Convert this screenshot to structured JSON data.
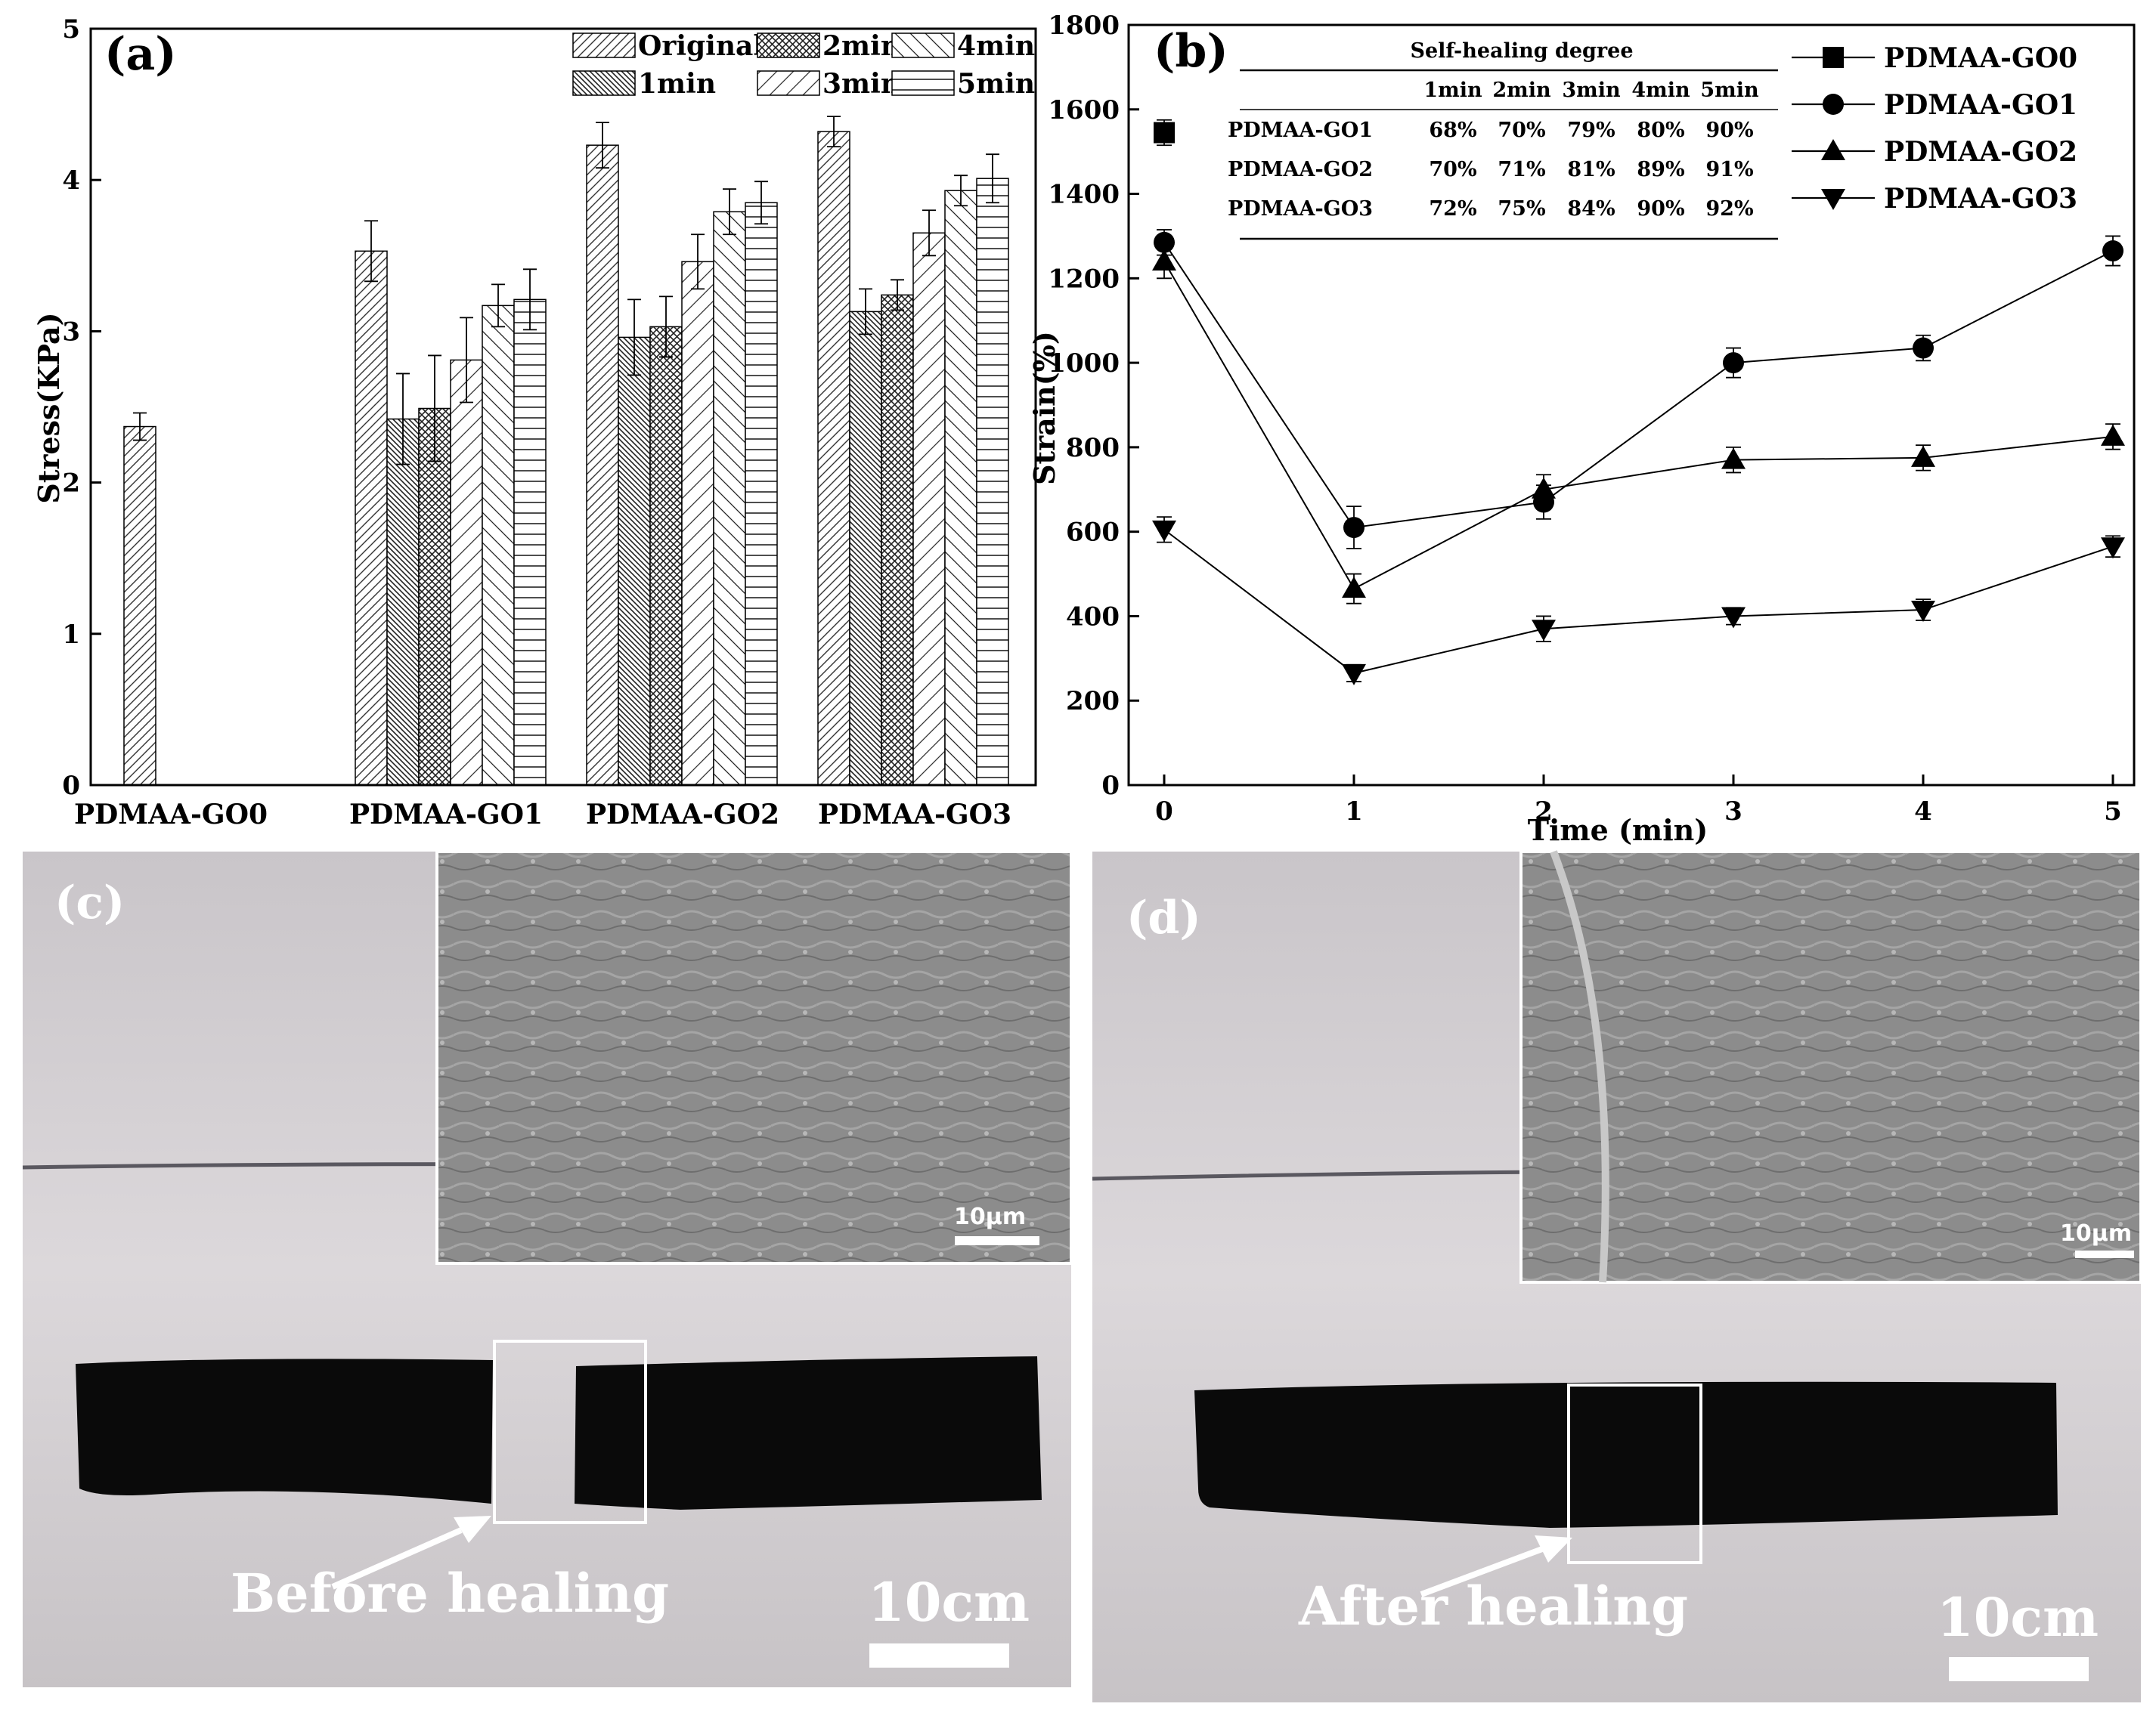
{
  "chart_data": [
    {
      "panel": "(a)",
      "type": "bar",
      "ylabel": "Stress(KPa)",
      "ylim": [
        0,
        5
      ],
      "yticks": [
        "0",
        "1",
        "2",
        "3",
        "4",
        "5"
      ],
      "categories": [
        "PDMAA-GO0",
        "PDMAA-GO1",
        "PDMAA-GO2",
        "PDMAA-GO3"
      ],
      "series": [
        {
          "name": "Original",
          "values": [
            2.37,
            3.53,
            4.23,
            4.32
          ],
          "errors": [
            0.09,
            0.2,
            0.15,
            0.1
          ]
        },
        {
          "name": "1min",
          "values": [
            null,
            2.42,
            2.96,
            3.13
          ],
          "errors": [
            null,
            0.3,
            0.25,
            0.15
          ]
        },
        {
          "name": "2min",
          "values": [
            null,
            2.49,
            3.03,
            3.24
          ],
          "errors": [
            null,
            0.35,
            0.2,
            0.1
          ]
        },
        {
          "name": "3min",
          "values": [
            null,
            2.81,
            3.46,
            3.65
          ],
          "errors": [
            null,
            0.28,
            0.18,
            0.15
          ]
        },
        {
          "name": "4min",
          "values": [
            null,
            3.17,
            3.79,
            3.93
          ],
          "errors": [
            null,
            0.14,
            0.15,
            0.1
          ]
        },
        {
          "name": "5min",
          "values": [
            null,
            3.21,
            3.85,
            4.01
          ],
          "errors": [
            null,
            0.2,
            0.14,
            0.16
          ]
        }
      ],
      "legend_location": "top-right"
    },
    {
      "panel": "(b)",
      "type": "line",
      "xlabel": "Time (min)",
      "ylabel": "Strain(%)",
      "xlim": [
        0,
        5
      ],
      "ylim": [
        0,
        1800
      ],
      "xticks": [
        "0",
        "1",
        "2",
        "3",
        "4",
        "5"
      ],
      "yticks": [
        "0",
        "200",
        "400",
        "600",
        "800",
        "1000",
        "1200",
        "1400",
        "1600",
        "1800"
      ],
      "x": [
        0,
        1,
        2,
        3,
        4,
        5
      ],
      "series": [
        {
          "name": "PDMAA-GO0",
          "marker": "square",
          "values": [
            1545,
            null,
            null,
            null,
            null,
            null
          ],
          "errors": [
            30,
            null,
            null,
            null,
            null,
            null
          ]
        },
        {
          "name": "PDMAA-GO1",
          "marker": "circle",
          "values": [
            1285,
            610,
            670,
            1000,
            1035,
            1265
          ],
          "errors": [
            30,
            50,
            40,
            35,
            30,
            35
          ]
        },
        {
          "name": "PDMAA-GO2",
          "marker": "triangle-up",
          "values": [
            1240,
            465,
            700,
            770,
            775,
            825
          ],
          "errors": [
            40,
            35,
            35,
            30,
            30,
            30
          ]
        },
        {
          "name": "PDMAA-GO3",
          "marker": "triangle-down",
          "values": [
            605,
            265,
            370,
            400,
            415,
            565
          ],
          "errors": [
            30,
            20,
            30,
            20,
            25,
            25
          ]
        }
      ],
      "legend_location": "top-right",
      "table": {
        "title": "Self-healing degree",
        "columns": [
          "",
          "1min",
          "2min",
          "3min",
          "4min",
          "5min"
        ],
        "rows": [
          [
            "PDMAA-GO1",
            "68%",
            "70%",
            "79%",
            "80%",
            "90%"
          ],
          [
            "PDMAA-GO2",
            "70%",
            "71%",
            "81%",
            "89%",
            "91%"
          ],
          [
            "PDMAA-GO3",
            "72%",
            "75%",
            "84%",
            "90%",
            "92%"
          ]
        ]
      }
    }
  ],
  "photos": {
    "c": {
      "label": "(c)",
      "caption": "Before healing",
      "scale": "10cm",
      "sem_scale": "10μm"
    },
    "d": {
      "label": "(d)",
      "caption": "After healing",
      "scale": "10cm",
      "sem_scale": "10μm"
    }
  }
}
